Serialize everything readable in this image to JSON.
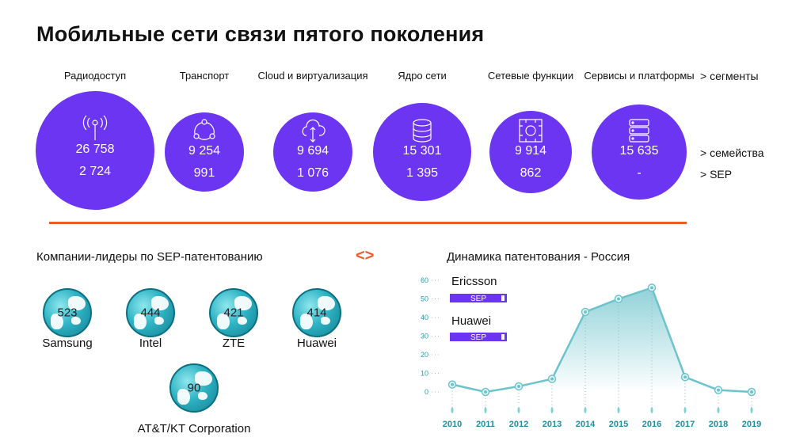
{
  "title": "Мобильные сети связи пятого поколения",
  "segments": [
    {
      "label": "Радиодоступ",
      "families": "26 758",
      "sep": "2 724",
      "icon": "antenna-icon"
    },
    {
      "label": "Транспорт",
      "families": "9 254",
      "sep": "991",
      "icon": "network-nodes-icon"
    },
    {
      "label": "Cloud и виртуализация",
      "families": "9 694",
      "sep": "1 076",
      "icon": "cloud-upload-icon"
    },
    {
      "label": "Ядро сети",
      "families": "15 301",
      "sep": "1 395",
      "icon": "database-icon"
    },
    {
      "label": "Сетевые функции",
      "families": "9 914",
      "sep": "862",
      "icon": "chip-gear-icon"
    },
    {
      "label": "Сервисы и платформы",
      "families": "15 635",
      "sep": "-",
      "icon": "server-icon"
    }
  ],
  "legend": {
    "segments": "> сегменты",
    "families": "> семейства",
    "sep": "> SEP"
  },
  "leaders": {
    "title": "Компании-лидеры по SEP-патентованию",
    "items": [
      {
        "name": "Samsung",
        "value": "523"
      },
      {
        "name": "Intel",
        "value": "444"
      },
      {
        "name": "ZTE",
        "value": "421"
      },
      {
        "name": "Huawei",
        "value": "414"
      },
      {
        "name": "AT&T/KT Corporation",
        "value": "90"
      }
    ]
  },
  "arrows": "<>",
  "accent": "#6b35f2",
  "chart_data": {
    "type": "area",
    "title": "Динамика патентования - Россия",
    "x": [
      "2010",
      "2011",
      "2012",
      "2013",
      "2014",
      "2015",
      "2016",
      "2017",
      "2018",
      "2019"
    ],
    "values": [
      4,
      0,
      3,
      7,
      43,
      50,
      56,
      8,
      1,
      0
    ],
    "yticks": [
      "0",
      "10",
      "20",
      "30",
      "40",
      "50",
      "60"
    ],
    "ylim": [
      0,
      60
    ],
    "annotations": [
      {
        "name": "Ericsson",
        "badge": "SEP"
      },
      {
        "name": "Huawei",
        "badge": "SEP"
      }
    ],
    "color": "#6cc3cc"
  }
}
